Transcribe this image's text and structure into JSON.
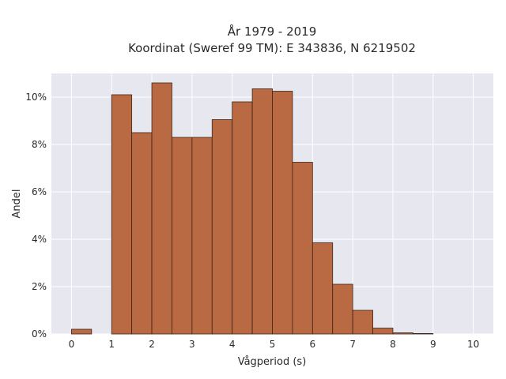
{
  "chart_data": {
    "type": "bar",
    "title_lines": [
      "År 1979 - 2019",
      "Koordinat (Sweref 99 TM): E 343836, N 6219502"
    ],
    "xlabel": "Vågperiod (s)",
    "ylabel": "Andel",
    "bin_width": 0.5,
    "bins": [
      {
        "x0": 0.0,
        "value": 0.2
      },
      {
        "x0": 0.5,
        "value": 0.0
      },
      {
        "x0": 1.0,
        "value": 10.1
      },
      {
        "x0": 1.5,
        "value": 8.5
      },
      {
        "x0": 2.0,
        "value": 10.6
      },
      {
        "x0": 2.5,
        "value": 8.3
      },
      {
        "x0": 3.0,
        "value": 8.3
      },
      {
        "x0": 3.5,
        "value": 9.05
      },
      {
        "x0": 4.0,
        "value": 9.8
      },
      {
        "x0": 4.5,
        "value": 10.35
      },
      {
        "x0": 5.0,
        "value": 10.25
      },
      {
        "x0": 5.5,
        "value": 7.25
      },
      {
        "x0": 6.0,
        "value": 3.85
      },
      {
        "x0": 6.5,
        "value": 2.1
      },
      {
        "x0": 7.0,
        "value": 1.0
      },
      {
        "x0": 7.5,
        "value": 0.25
      },
      {
        "x0": 8.0,
        "value": 0.05
      },
      {
        "x0": 8.5,
        "value": 0.02
      }
    ],
    "x_ticks": [
      "0",
      "1",
      "2",
      "3",
      "4",
      "5",
      "6",
      "7",
      "8",
      "9",
      "10"
    ],
    "y_ticks": [
      "0%",
      "2%",
      "4%",
      "6%",
      "8%",
      "10%"
    ],
    "y_unit": "%",
    "xlim": [
      -0.5,
      10.5
    ],
    "ylim": [
      0,
      11
    ],
    "grid": true,
    "legend": false,
    "colors": {
      "bar_fill": "#b96a43",
      "bar_stroke": "#3d2316",
      "plot_background": "#e7e7f0",
      "grid": "#ffffff"
    }
  }
}
